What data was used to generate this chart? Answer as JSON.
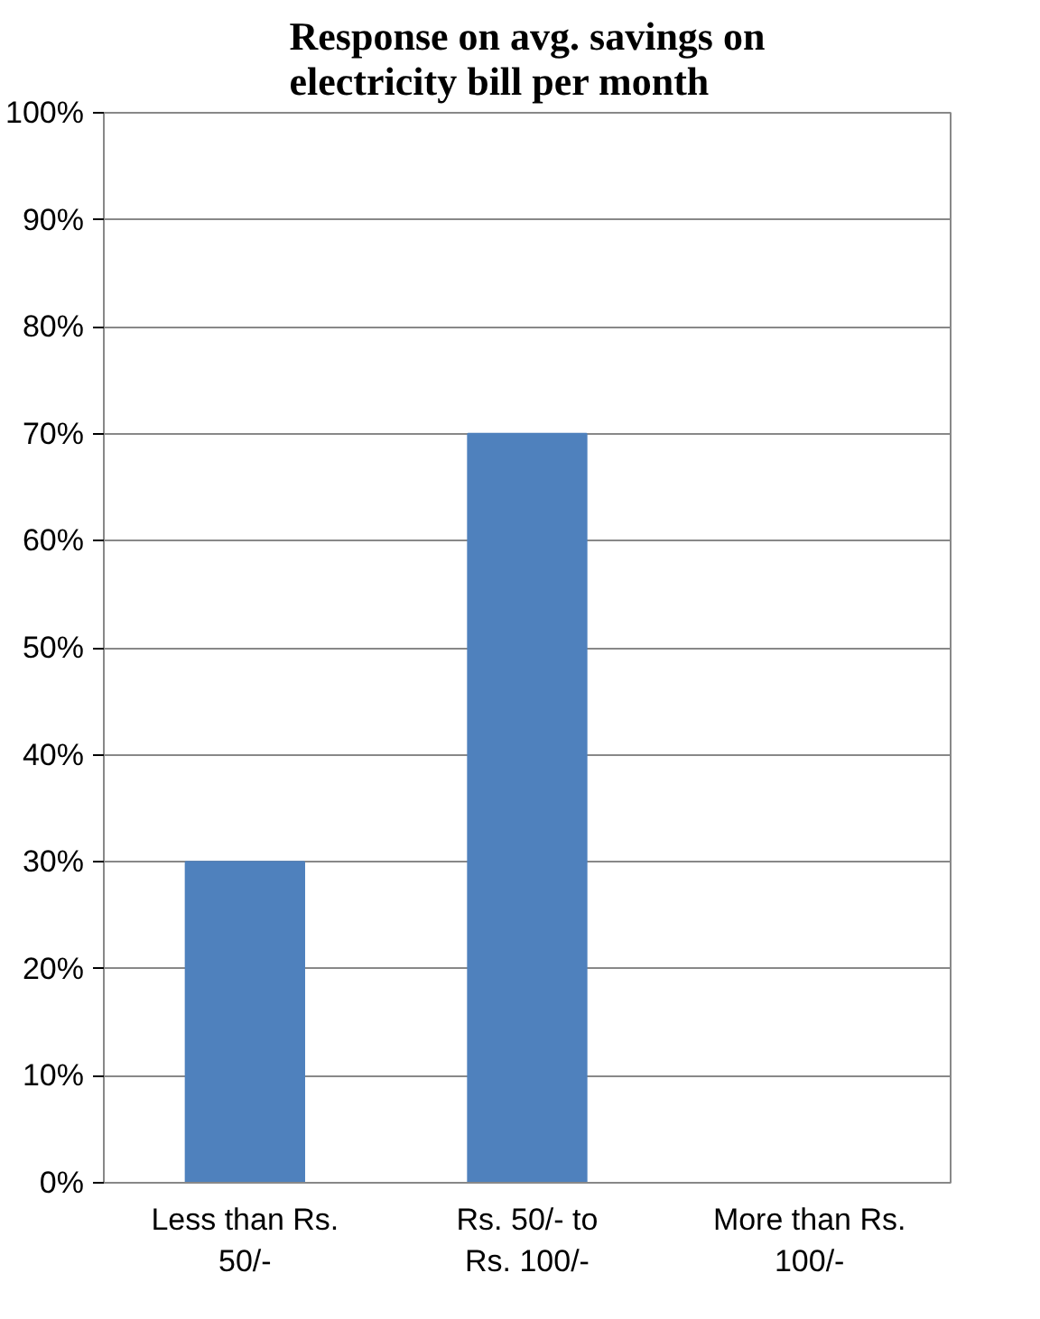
{
  "chart_data": {
    "type": "bar",
    "title": "Response on avg. savings on electricity bill per month",
    "categories": [
      "Less than Rs. 50/-",
      "Rs. 50/- to Rs. 100/-",
      "More than Rs. 100/-"
    ],
    "values": [
      30,
      70,
      0
    ],
    "color": "#4f81bd",
    "ylim": [
      0,
      100
    ],
    "yticks": [
      {
        "value": 0,
        "label": "0%"
      },
      {
        "value": 10,
        "label": "10%"
      },
      {
        "value": 20,
        "label": "20%"
      },
      {
        "value": 30,
        "label": "30%"
      },
      {
        "value": 40,
        "label": "40%"
      },
      {
        "value": 50,
        "label": "50%"
      },
      {
        "value": 60,
        "label": "60%"
      },
      {
        "value": 70,
        "label": "70%"
      },
      {
        "value": 80,
        "label": "80%"
      },
      {
        "value": 90,
        "label": "90%"
      },
      {
        "value": 100,
        "label": "100%"
      }
    ],
    "grid": "y"
  }
}
